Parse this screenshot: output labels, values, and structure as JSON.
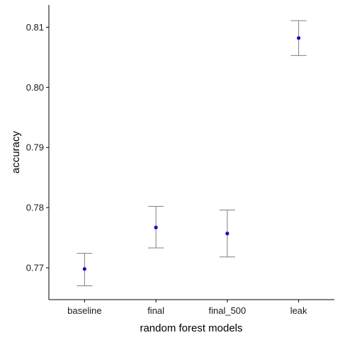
{
  "chart_data": {
    "type": "scatter",
    "title": "",
    "xlabel": "random forest models",
    "ylabel": "accuracy",
    "categories": [
      "baseline",
      "final",
      "final_500",
      "leak"
    ],
    "values": [
      0.7698,
      0.7767,
      0.7757,
      0.8082
    ],
    "error_low": [
      0.767,
      0.7733,
      0.7718,
      0.8053
    ],
    "error_high": [
      0.7724,
      0.7802,
      0.7796,
      0.8111
    ],
    "ylim": [
      0.7647,
      0.8137
    ],
    "yticks": [
      0.77,
      0.78,
      0.79,
      0.8,
      0.81
    ],
    "ytick_labels": [
      "0.77",
      "0.78",
      "0.79",
      "0.80",
      "0.81"
    ],
    "grid": false,
    "colors": {
      "point": "#1010c8",
      "errorbar": "#7f7f7f",
      "axis": "#000000"
    }
  }
}
